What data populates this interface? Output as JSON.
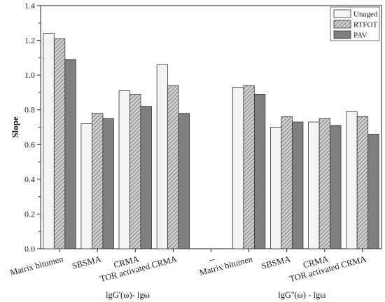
{
  "chart_data": {
    "type": "bar",
    "ylabel": "Slope",
    "ylim": [
      0,
      1.4
    ],
    "yticks": [
      "0.0",
      "0.2",
      "0.4",
      "0.6",
      "0.8",
      "1.0",
      "1.2",
      "1.4"
    ],
    "categories": [
      "Matrix bitumen",
      "SBSMA",
      "CRMA",
      "TOR activated CRMA",
      "--",
      "Matrix bitumen",
      "SBSMA",
      "CRMA",
      "TOR activated CRMA"
    ],
    "groups": [
      {
        "label": "lgG'(ω)- lgω"
      },
      {
        "label": "lgG''(ω) - lgω"
      }
    ],
    "legend_position": "top-right",
    "series": [
      {
        "name": "Unaged",
        "color": "#f4f4f4",
        "pattern": "solid",
        "values": [
          1.24,
          0.72,
          0.91,
          1.06,
          null,
          0.93,
          0.7,
          0.73,
          0.79
        ]
      },
      {
        "name": "RTFOT",
        "color": "#b5b5b5",
        "pattern": "hatch",
        "values": [
          1.21,
          0.78,
          0.89,
          0.94,
          null,
          0.94,
          0.76,
          0.75,
          0.76
        ]
      },
      {
        "name": "PAV",
        "color": "#7f7f7f",
        "pattern": "solid",
        "values": [
          1.09,
          0.75,
          0.82,
          0.78,
          null,
          0.89,
          0.73,
          0.71,
          0.66
        ]
      }
    ]
  }
}
